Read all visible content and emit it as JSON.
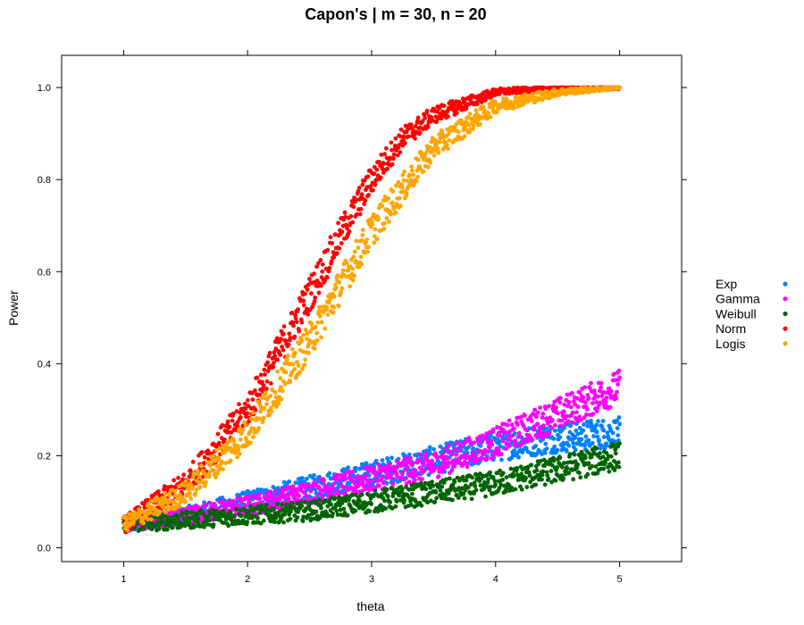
{
  "chart_data": {
    "type": "scatter",
    "title": "Capon's | m = 30, n = 20",
    "xlabel": "theta",
    "ylabel": "Power",
    "xlim": [
      0.5,
      5.5
    ],
    "ylim": [
      -0.03,
      1.07
    ],
    "x_ticks": [
      "1",
      "2",
      "3",
      "4",
      "5"
    ],
    "y_ticks": [
      "0.0",
      "0.2",
      "0.4",
      "0.6",
      "0.8",
      "1.0"
    ],
    "grid": false,
    "legend_position": "right",
    "series": [
      {
        "name": "Exp",
        "color": "#0080ff",
        "x": [
          1.0,
          1.5,
          2.0,
          2.5,
          3.0,
          3.5,
          4.0,
          4.5,
          5.0
        ],
        "y": [
          0.05,
          0.07,
          0.1,
          0.13,
          0.16,
          0.19,
          0.22,
          0.24,
          0.25
        ]
      },
      {
        "name": "Gamma",
        "color": "#ff00ff",
        "x": [
          1.0,
          1.5,
          2.0,
          2.5,
          3.0,
          3.5,
          4.0,
          4.5,
          5.0
        ],
        "y": [
          0.05,
          0.07,
          0.09,
          0.12,
          0.15,
          0.18,
          0.23,
          0.29,
          0.35
        ]
      },
      {
        "name": "Weibull",
        "color": "#006400",
        "x": [
          1.0,
          1.5,
          2.0,
          2.5,
          3.0,
          3.5,
          4.0,
          4.5,
          5.0
        ],
        "y": [
          0.05,
          0.06,
          0.07,
          0.08,
          0.1,
          0.12,
          0.14,
          0.17,
          0.2
        ]
      },
      {
        "name": "Norm",
        "color": "#ff0000",
        "x": [
          1.0,
          1.5,
          2.0,
          2.5,
          2.75,
          3.0,
          3.25,
          3.5,
          4.0,
          4.5,
          5.0
        ],
        "y": [
          0.05,
          0.14,
          0.3,
          0.55,
          0.68,
          0.8,
          0.89,
          0.94,
          0.99,
          1.0,
          1.0
        ]
      },
      {
        "name": "Logis",
        "color": "#ffa500",
        "x": [
          1.0,
          1.5,
          2.0,
          2.5,
          3.0,
          3.5,
          4.0,
          4.5,
          5.0
        ],
        "y": [
          0.05,
          0.12,
          0.25,
          0.45,
          0.69,
          0.87,
          0.96,
          0.99,
          1.0
        ]
      }
    ]
  }
}
